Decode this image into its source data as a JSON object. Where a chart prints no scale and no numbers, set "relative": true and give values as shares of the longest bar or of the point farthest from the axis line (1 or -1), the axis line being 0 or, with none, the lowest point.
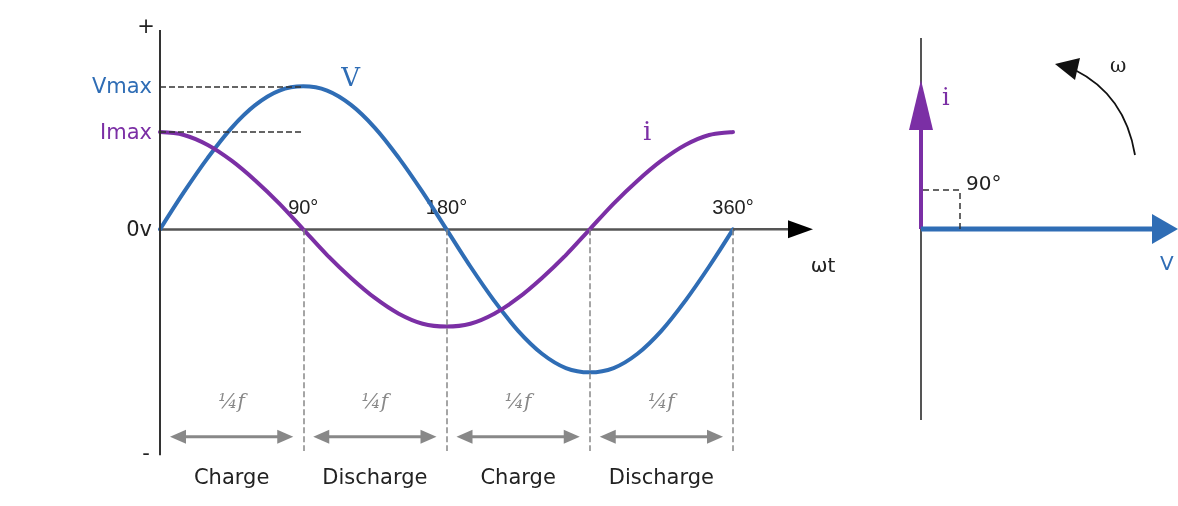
{
  "chart_data": [
    {
      "type": "line",
      "xlabel": "ωt",
      "relative": true,
      "marker": "none",
      "line_style": "solid",
      "x": [
        0,
        15,
        30,
        45,
        60,
        75,
        90,
        105,
        120,
        135,
        150,
        165,
        180,
        195,
        210,
        225,
        240,
        255,
        270,
        285,
        300,
        315,
        330,
        345,
        360
      ],
      "xlim": [
        0,
        360
      ],
      "xticks": [
        {
          "value": 90,
          "label": "90°"
        },
        {
          "value": 180,
          "label": "180°"
        },
        {
          "value": 270,
          "label": null
        },
        {
          "value": 360,
          "label": "360°"
        }
      ],
      "grid": "x",
      "series": [
        {
          "name": "V",
          "color": "#2f6db5",
          "values": [
            0,
            0.26,
            0.5,
            0.71,
            0.87,
            0.97,
            1,
            0.97,
            0.87,
            0.71,
            0.5,
            0.26,
            0,
            -0.26,
            -0.5,
            -0.71,
            -0.87,
            -0.97,
            -1,
            -0.97,
            -0.87,
            -0.71,
            -0.5,
            -0.26,
            0
          ]
        },
        {
          "name": "i",
          "color": "#7b2fa5",
          "values": [
            0.68,
            0.66,
            0.59,
            0.48,
            0.34,
            0.18,
            0,
            -0.18,
            -0.34,
            -0.48,
            -0.59,
            -0.66,
            -0.68,
            -0.66,
            -0.59,
            -0.48,
            -0.34,
            -0.18,
            0,
            0.18,
            0.34,
            0.48,
            0.59,
            0.66,
            0.68
          ]
        }
      ],
      "ref_lines": [
        {
          "axis": "y",
          "value": 1,
          "line_style": "dashed",
          "color": "#333333"
        },
        {
          "axis": "y",
          "value": 0.68,
          "line_style": "dashed",
          "color": "#333333"
        }
      ],
      "annotations": [
        "Vmax",
        "Imax",
        "0v",
        "+",
        "-",
        "¼f",
        "¼f",
        "¼f",
        "¼f",
        "Charge",
        "Discharge",
        "Charge",
        "Discharge"
      ]
    },
    {
      "type": "other",
      "annotations": [
        "i",
        "90°",
        "ω",
        "V"
      ]
    }
  ]
}
